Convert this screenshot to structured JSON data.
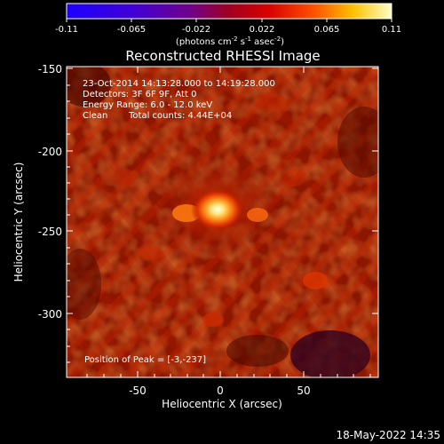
{
  "colorbar": {
    "ticks": [
      "-0.11",
      "-0.065",
      "-0.022",
      "0.022",
      "0.065",
      "0.11"
    ],
    "units_main": "(photons cm",
    "units_sup1": "-2",
    "units_mid": " s",
    "units_sup2": "-1",
    "units_mid2": " asec",
    "units_sup3": "-2",
    "units_end": ")"
  },
  "plot": {
    "title": "Reconstructed RHESSI Image",
    "xlabel": "Heliocentric X (arcsec)",
    "ylabel": "Heliocentric Y (arcsec)",
    "xticks": [
      "-50",
      "0",
      "50"
    ],
    "yticks": [
      "-150",
      "-200",
      "-250",
      "-300"
    ]
  },
  "annotations": {
    "time_range": "23-Oct-2014 14:13:28.000 to 14:19:28.000",
    "detectors": "Detectors: 3F 6F 9F, Att 0",
    "energy": "Energy Range: 6.0 - 12.0 keV",
    "clean": "Clean",
    "counts": "Total counts: 4.44E+04",
    "peak": "Position of Peak = [-3,-237]"
  },
  "footer": {
    "date": "18-May-2022 14:35"
  }
}
